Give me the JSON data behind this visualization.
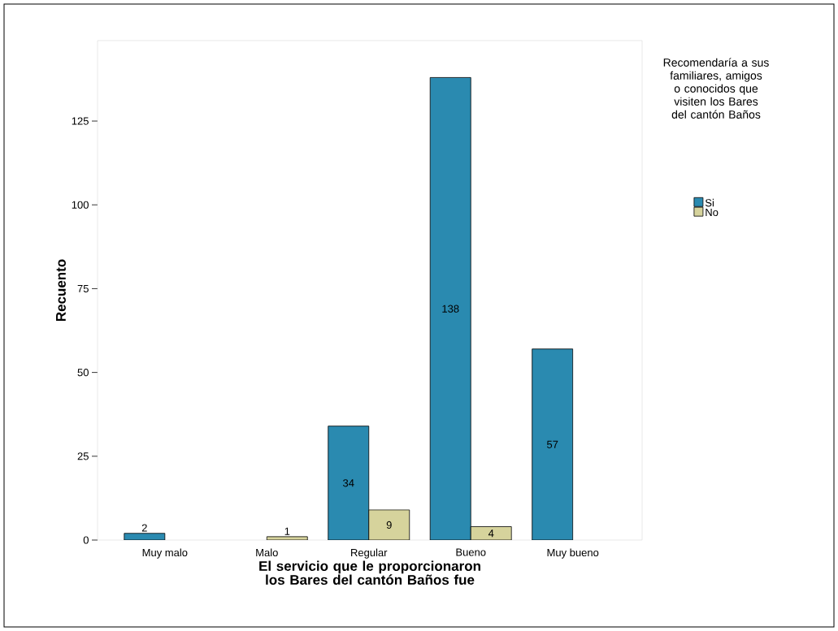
{
  "chart_data": {
    "type": "bar",
    "xlabel": "El servicio que le proporcionaron los Bares del cantón Baños fue",
    "ylabel": "Recuento",
    "legend_title": "Recomendaría a sus familiares, amigos o conocidos que visiten los Bares del cantón Baños",
    "categories": [
      "Muy malo",
      "Malo",
      "Regular",
      "Bueno",
      "Muy bueno"
    ],
    "series": [
      {
        "name": "Si",
        "color": "#2a8ab0",
        "values": [
          2,
          null,
          34,
          138,
          57
        ]
      },
      {
        "name": "No",
        "color": "#d6d39c",
        "values": [
          null,
          1,
          9,
          4,
          null
        ]
      }
    ],
    "ylim": [
      0,
      149
    ],
    "yticks": [
      0,
      25,
      50,
      75,
      100,
      125
    ],
    "data_labels": true,
    "legend": "right",
    "grid": false
  }
}
